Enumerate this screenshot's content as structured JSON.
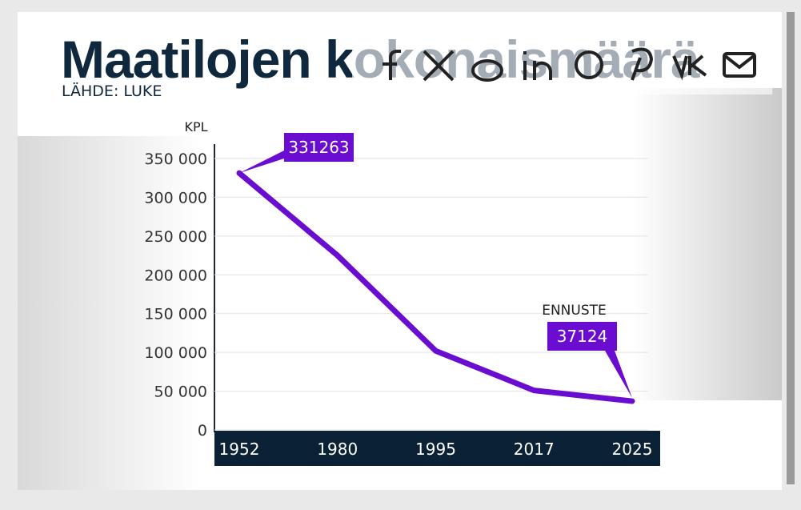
{
  "chart_data": {
    "type": "line",
    "title": "Maatilojen kokonaismäärä",
    "source": "LÄHDE: LUKE",
    "y_label": "KPL",
    "annotation": "ENNUSTE",
    "categories": [
      "1952",
      "1980",
      "1995",
      "2017",
      "2025"
    ],
    "values": [
      331263,
      225000,
      102000,
      51000,
      37124
    ],
    "value_labels": [
      "331263",
      null,
      null,
      null,
      "37124"
    ],
    "color": "#6a0dd0",
    "ylim": [
      0,
      350000
    ],
    "yticks": [
      0,
      {
        "value": 50000,
        "label": "50 000"
      },
      {
        "value": 100000,
        "label": "100 000"
      },
      {
        "value": 150000,
        "label": "150 000"
      },
      {
        "value": 200000,
        "label": "200 000"
      },
      {
        "value": 250000,
        "label": "250 000"
      },
      {
        "value": 300000,
        "label": "300 000"
      },
      {
        "value": 350000,
        "label": "350 000"
      }
    ],
    "grid": true
  }
}
